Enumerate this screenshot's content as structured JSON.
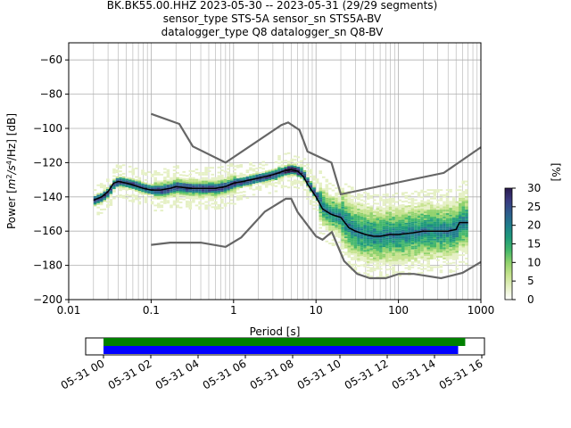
{
  "title_lines": [
    "BK.BK55.00.HHZ   2023-05-30 -- 2023-05-31  (29/29 segments)",
    "sensor_type STS-5A sensor_sn STS5A-BV",
    "datalogger_type Q8 datalogger_sn Q8-BV"
  ],
  "colorbar": {
    "label": "[%]",
    "ticks": [
      "0",
      "5",
      "10",
      "15",
      "20",
      "25",
      "30"
    ],
    "range": [
      0,
      30
    ]
  },
  "chart_data": [
    {
      "type": "heatmap",
      "xlabel": "Period [s]",
      "ylabel_parts": {
        "prefix": "Power [",
        "unit_a": "m",
        "exp_a": "2",
        "unit_b": "/s",
        "exp_b": "4",
        "suffix": "/Hz] [dB]"
      },
      "x_scale": "log",
      "xlim": [
        0.01,
        1000
      ],
      "ylim": [
        -200,
        -50
      ],
      "x_tick_labels": [
        "0.01",
        "0.1",
        "1",
        "10",
        "100",
        "1000"
      ],
      "y_tick_labels": [
        "−60",
        "−80",
        "−100",
        "−120",
        "−140",
        "−160",
        "−180",
        "−200"
      ],
      "grid": true,
      "series": [
        {
          "name": "",
          "kind": "mode",
          "color": "#000000",
          "points": [
            [
              0.02,
              -142
            ],
            [
              0.025,
              -140
            ],
            [
              0.03,
              -137
            ],
            [
              0.035,
              -132
            ],
            [
              0.04,
              -131
            ],
            [
              0.05,
              -132
            ],
            [
              0.06,
              -133
            ],
            [
              0.08,
              -135
            ],
            [
              0.1,
              -136
            ],
            [
              0.13,
              -136
            ],
            [
              0.17,
              -135
            ],
            [
              0.2,
              -134
            ],
            [
              0.3,
              -135
            ],
            [
              0.4,
              -135
            ],
            [
              0.6,
              -135
            ],
            [
              0.8,
              -134
            ],
            [
              1.0,
              -132
            ],
            [
              1.3,
              -131
            ],
            [
              1.6,
              -130
            ],
            [
              2.0,
              -129
            ],
            [
              2.5,
              -128
            ],
            [
              3,
              -127
            ],
            [
              3.5,
              -126
            ],
            [
              4,
              -125
            ],
            [
              5,
              -124
            ],
            [
              6,
              -125
            ],
            [
              7,
              -128
            ],
            [
              8,
              -133
            ],
            [
              10,
              -140
            ],
            [
              12,
              -147
            ],
            [
              15,
              -150
            ],
            [
              17,
              -151
            ],
            [
              20,
              -152
            ],
            [
              25,
              -158
            ],
            [
              30,
              -160
            ],
            [
              40,
              -162
            ],
            [
              50,
              -163
            ],
            [
              60,
              -163
            ],
            [
              80,
              -162
            ],
            [
              100,
              -162
            ],
            [
              150,
              -161
            ],
            [
              200,
              -160
            ],
            [
              300,
              -160
            ],
            [
              400,
              -160
            ],
            [
              500,
              -159
            ],
            [
              550,
              -155
            ],
            [
              700,
              -155
            ]
          ]
        },
        {
          "name": "",
          "kind": "high_noise_model",
          "color": "#666666",
          "points": [
            [
              0.1,
              -91.5
            ],
            [
              0.22,
              -97.4
            ],
            [
              0.32,
              -110.5
            ],
            [
              0.8,
              -120
            ],
            [
              3.8,
              -98
            ],
            [
              4.6,
              -96.5
            ],
            [
              6.3,
              -101
            ],
            [
              7.9,
              -113.5
            ],
            [
              15.4,
              -120
            ],
            [
              20,
              -138.5
            ],
            [
              354.8,
              -126
            ],
            [
              1000,
              -111
            ]
          ]
        },
        {
          "name": "",
          "kind": "low_noise_model",
          "color": "#666666",
          "points": [
            [
              0.1,
              -168
            ],
            [
              0.17,
              -166.7
            ],
            [
              0.4,
              -166.7
            ],
            [
              0.8,
              -169.2
            ],
            [
              1.24,
              -163.7
            ],
            [
              2.4,
              -148.6
            ],
            [
              4.3,
              -141.1
            ],
            [
              5,
              -141.1
            ],
            [
              6,
              -149
            ],
            [
              10,
              -163
            ],
            [
              12,
              -165
            ],
            [
              15.6,
              -160.5
            ],
            [
              21.9,
              -177.5
            ],
            [
              31.6,
              -185
            ],
            [
              45,
              -187.5
            ],
            [
              70,
              -187.5
            ],
            [
              101,
              -185
            ],
            [
              154,
              -185
            ],
            [
              328,
              -187.5
            ],
            [
              600,
              -184.4
            ],
            [
              1000,
              -178
            ]
          ]
        }
      ],
      "density_colors": [
        "#ffffff",
        "#e5f0c4",
        "#c6e38e",
        "#8fd16b",
        "#42b66a",
        "#1f9a7a",
        "#1f7d8c",
        "#2e5c8c",
        "#3a3a80",
        "#2b1b4f"
      ]
    },
    {
      "type": "bar",
      "orientation": "horizontal",
      "xlim": [
        "05-31 00",
        "05-31 16"
      ],
      "x_tick_labels": [
        "05-31 00",
        "05-31 02",
        "05-31 04",
        "05-31 06",
        "05-31 08",
        "05-31 10",
        "05-31 12",
        "05-31 14",
        "05-31 16"
      ],
      "series": [
        {
          "name": "",
          "color": "#008000",
          "start_hours": 0.0,
          "end_hours": 15.3
        },
        {
          "name": "",
          "color": "#0000ff",
          "start_hours": 0.0,
          "end_hours": 15.0
        }
      ]
    }
  ]
}
